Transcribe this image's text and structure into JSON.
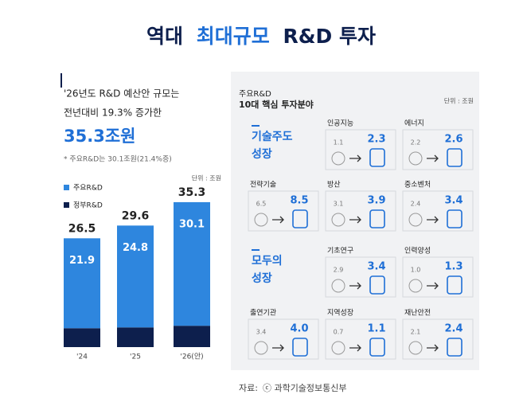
{
  "title": [
    "역대",
    "최대규모",
    "R&D 투자"
  ],
  "chart_data": {
    "type": "bar",
    "stacked": true,
    "headline": [
      "'26년도 R&D 예산안 규모는",
      "전년대비 19.3% 증가한",
      "35.3조원"
    ],
    "note": "* 주요R&D는 30.1조원(21.4%증)",
    "unit": "단위 : 조원",
    "categories": [
      "'24",
      "'25",
      "'26(안)"
    ],
    "series": [
      {
        "name": "정부R&D",
        "color": "#0d1f4d",
        "values": [
          4.6,
          4.8,
          5.2
        ]
      },
      {
        "name": "주요R&D",
        "color": "#2e86de",
        "values": [
          21.9,
          24.8,
          30.1
        ]
      }
    ],
    "totals": [
      26.5,
      29.6,
      35.3
    ],
    "ylim": [
      0,
      38
    ]
  },
  "panel": {
    "title": [
      "주요R&D",
      "10대 핵심 투자분야"
    ],
    "unit": "단위 : 조원",
    "groups": [
      {
        "label": [
          "기술주도",
          "성장"
        ]
      },
      {
        "label": [
          "모두의",
          "성장"
        ]
      }
    ],
    "items": [
      {
        "name": "인공지능",
        "from": "1.1",
        "to": "2.3"
      },
      {
        "name": "에너지",
        "from": "2.2",
        "to": "2.6"
      },
      {
        "name": "전략기술",
        "from": "6.5",
        "to": "8.5"
      },
      {
        "name": "방산",
        "from": "3.1",
        "to": "3.9"
      },
      {
        "name": "중소벤처",
        "from": "2.4",
        "to": "3.4"
      },
      {
        "name": "기초연구",
        "from": "2.9",
        "to": "3.4"
      },
      {
        "name": "인력양성",
        "from": "1.0",
        "to": "1.3"
      },
      {
        "name": "출연기관",
        "from": "3.4",
        "to": "4.0"
      },
      {
        "name": "지역성장",
        "from": "0.7",
        "to": "1.1"
      },
      {
        "name": "재난안전",
        "from": "2.1",
        "to": "2.4"
      }
    ]
  },
  "source": [
    "자료:",
    "ⓒ 과학기술정보통신부"
  ]
}
